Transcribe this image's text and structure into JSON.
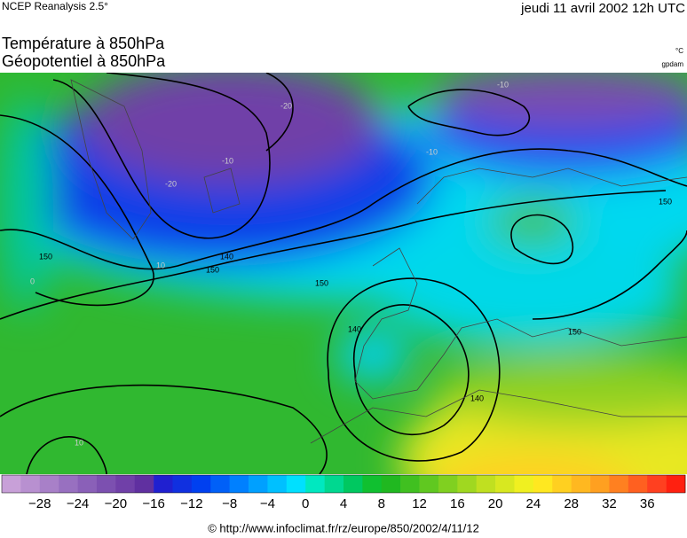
{
  "header": {
    "source": "NCEP Reanalysis 2.5°",
    "date": "jeudi 11 avril 2002 12h UTC"
  },
  "titles": [
    "Température à 850hPa",
    "Géopotentiel à 850hPa"
  ],
  "units": {
    "temperature": "°C",
    "geopotential": "gpdam"
  },
  "contour_labels": [
    "150",
    "140",
    "150",
    "140",
    "150",
    "140",
    "150",
    "150",
    "-10",
    "-20",
    "-10",
    "10",
    "-20",
    "0",
    "10",
    "-10"
  ],
  "colorbar": {
    "ticks": [
      {
        "value": -28,
        "label": "−28"
      },
      {
        "value": -24,
        "label": "−24"
      },
      {
        "value": -20,
        "label": "−20"
      },
      {
        "value": -16,
        "label": "−16"
      },
      {
        "value": -12,
        "label": "−12"
      },
      {
        "value": -8,
        "label": "−8"
      },
      {
        "value": -4,
        "label": "−4"
      },
      0,
      4,
      8,
      12,
      16,
      20,
      24,
      28,
      32,
      36
    ]
  },
  "footer": "© http://www.infoclimat.fr/rz/europe/850/2002/4/11/12"
}
